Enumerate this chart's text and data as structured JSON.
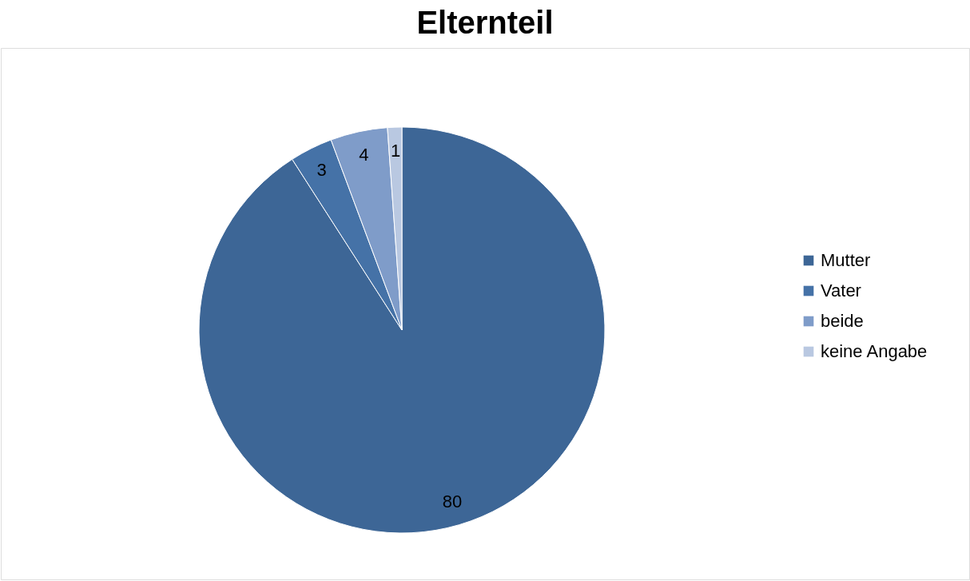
{
  "chart_data": {
    "type": "pie",
    "title": "Elternteil",
    "categories": [
      "Mutter",
      "Vater",
      "beide",
      "keine Angabe"
    ],
    "values": [
      80,
      3,
      4,
      1
    ],
    "colors": [
      "#3d6696",
      "#4572a7",
      "#7f9cc9",
      "#b9c8e1"
    ],
    "data_labels": true,
    "legend": "right"
  }
}
